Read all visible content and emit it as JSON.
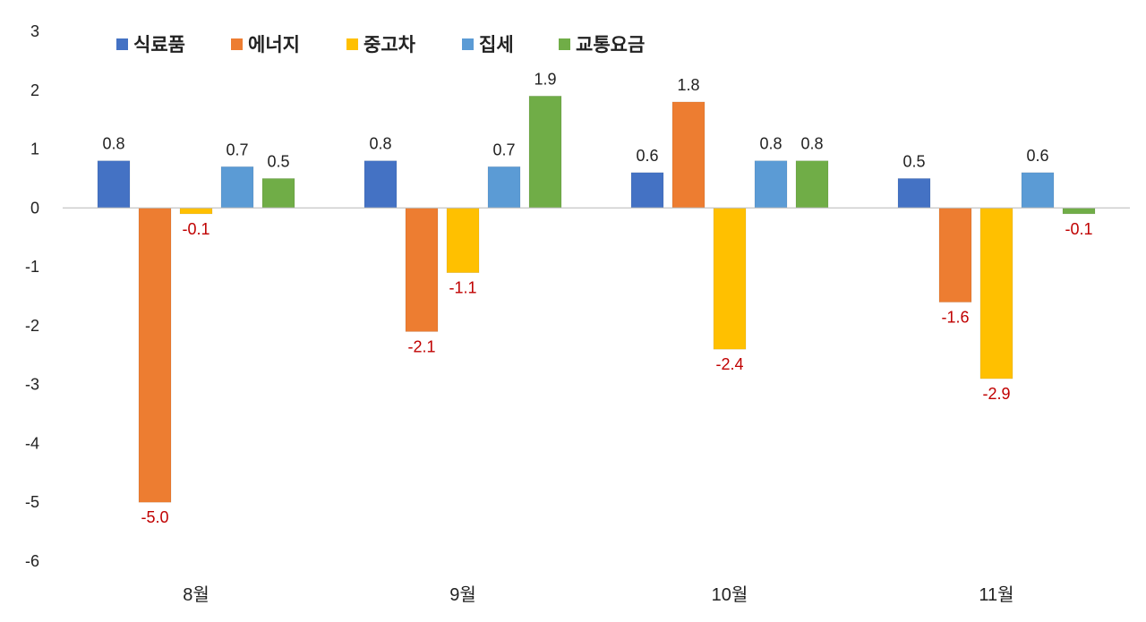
{
  "chart_data": {
    "type": "bar",
    "categories": [
      "8월",
      "9월",
      "10월",
      "11월"
    ],
    "series": [
      {
        "name": "식료품",
        "color": "#4472C4",
        "values": [
          0.8,
          0.8,
          0.6,
          0.5
        ]
      },
      {
        "name": "에너지",
        "color": "#ED7D31",
        "values": [
          -5.0,
          -2.1,
          1.8,
          -1.6
        ]
      },
      {
        "name": "중고차",
        "color": "#FFC000",
        "values": [
          -0.1,
          -1.1,
          -2.4,
          -2.9
        ]
      },
      {
        "name": "집세",
        "color": "#5B9BD5",
        "values": [
          0.7,
          0.7,
          0.8,
          0.6
        ]
      },
      {
        "name": "교통요금",
        "color": "#70AD47",
        "values": [
          0.5,
          1.9,
          0.8,
          -0.1
        ]
      }
    ],
    "data_labels": [
      [
        "0.8",
        "-5.0",
        "-0.1",
        "0.7",
        "0.5"
      ],
      [
        "0.8",
        "-2.1",
        "-1.1",
        "0.7",
        "1.9"
      ],
      [
        "0.6",
        "1.8",
        "-2.4",
        "0.8",
        "0.8"
      ],
      [
        "0.5",
        "-1.6",
        "-2.9",
        "0.6",
        "-0.1"
      ]
    ],
    "y_ticks": [
      "3",
      "2",
      "1",
      "0",
      "-1",
      "-2",
      "-3",
      "-4",
      "-5",
      "-6"
    ],
    "ylim": [
      -6,
      3
    ],
    "grid": false,
    "legend_position": "top",
    "label_color_positive": "#222222",
    "label_color_negative": "#C00000",
    "zero_line_color": "#BFBFBF"
  }
}
